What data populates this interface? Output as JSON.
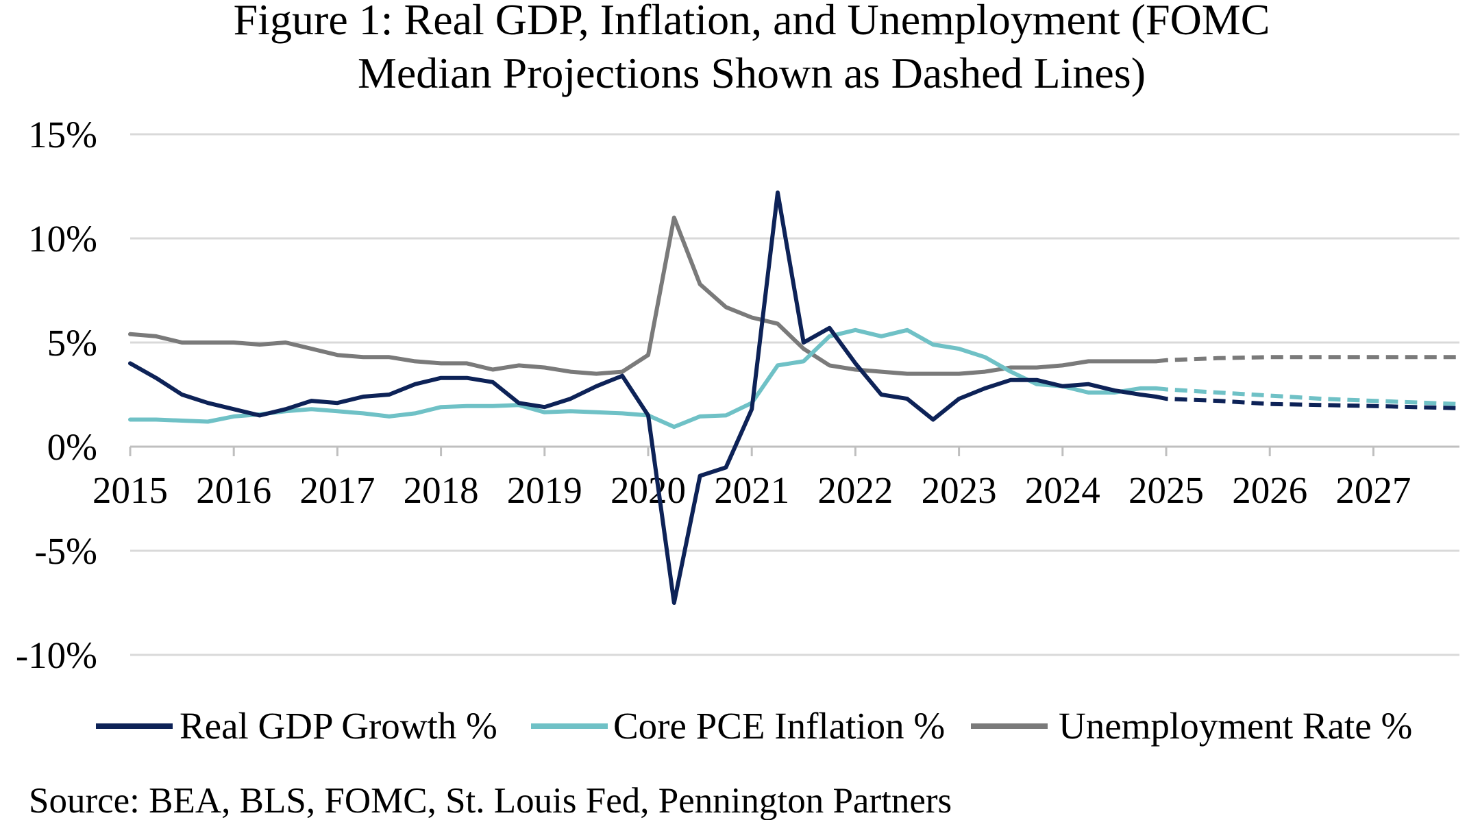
{
  "chart_data": {
    "type": "line",
    "title_lines": [
      "Figure 1: Real GDP, Inflation, and Unemployment (FOMC",
      "Median Projections Shown as Dashed Lines)"
    ],
    "xlabel": "",
    "ylabel": "",
    "ylim": [
      -10,
      15
    ],
    "xlim": [
      2015,
      2027.8
    ],
    "y_ticks": [
      {
        "value": 15,
        "label": "15%"
      },
      {
        "value": 10,
        "label": "10%"
      },
      {
        "value": 5,
        "label": "5%"
      },
      {
        "value": 0,
        "label": "0%"
      },
      {
        "value": -5,
        "label": "-5%"
      },
      {
        "value": -10,
        "label": "-10%"
      }
    ],
    "x_ticks": [
      {
        "value": 2015,
        "label": "2015"
      },
      {
        "value": 2016,
        "label": "2016"
      },
      {
        "value": 2017,
        "label": "2017"
      },
      {
        "value": 2018,
        "label": "2018"
      },
      {
        "value": 2019,
        "label": "2019"
      },
      {
        "value": 2020,
        "label": "2020"
      },
      {
        "value": 2021,
        "label": "2021"
      },
      {
        "value": 2022,
        "label": "2022"
      },
      {
        "value": 2023,
        "label": "2023"
      },
      {
        "value": 2024,
        "label": "2024"
      },
      {
        "value": 2025,
        "label": "2025"
      },
      {
        "value": 2026,
        "label": "2026"
      },
      {
        "value": 2027,
        "label": "2027"
      }
    ],
    "grid": "horizontal",
    "legend_position": "bottom",
    "series": [
      {
        "name": "Real GDP Growth %",
        "color": "#0d2257",
        "x": [
          2015.0,
          2015.25,
          2015.5,
          2015.75,
          2016.0,
          2016.25,
          2016.5,
          2016.75,
          2017.0,
          2017.25,
          2017.5,
          2017.75,
          2018.0,
          2018.25,
          2018.5,
          2018.75,
          2019.0,
          2019.25,
          2019.5,
          2019.75,
          2020.0,
          2020.25,
          2020.5,
          2020.75,
          2021.0,
          2021.25,
          2021.5,
          2021.75,
          2022.0,
          2022.25,
          2022.5,
          2022.75,
          2023.0,
          2023.25,
          2023.5,
          2023.75,
          2024.0,
          2024.25,
          2024.5,
          2024.75,
          2024.9
        ],
        "values": [
          4.0,
          3.3,
          2.5,
          2.1,
          1.8,
          1.5,
          1.8,
          2.2,
          2.1,
          2.4,
          2.5,
          3.0,
          3.3,
          3.3,
          3.1,
          2.1,
          1.9,
          2.3,
          2.9,
          3.4,
          1.5,
          -7.5,
          -1.4,
          -1.0,
          1.8,
          12.2,
          5.0,
          5.7,
          4.0,
          2.5,
          2.3,
          1.3,
          2.3,
          2.8,
          3.2,
          3.2,
          2.9,
          3.0,
          2.7,
          2.5,
          2.4
        ],
        "projection": {
          "x": [
            2024.9,
            2025.0,
            2025.5,
            2026.0,
            2026.5,
            2027.0,
            2027.8
          ],
          "values": [
            2.4,
            2.3,
            2.2,
            2.05,
            2.0,
            1.95,
            1.85
          ]
        }
      },
      {
        "name": "Core PCE Inflation %",
        "color": "#6fc1c6",
        "x": [
          2015.0,
          2015.25,
          2015.5,
          2015.75,
          2016.0,
          2016.25,
          2016.5,
          2016.75,
          2017.0,
          2017.25,
          2017.5,
          2017.75,
          2018.0,
          2018.25,
          2018.5,
          2018.75,
          2019.0,
          2019.25,
          2019.5,
          2019.75,
          2020.0,
          2020.25,
          2020.5,
          2020.75,
          2021.0,
          2021.25,
          2021.5,
          2021.75,
          2022.0,
          2022.25,
          2022.5,
          2022.75,
          2023.0,
          2023.25,
          2023.5,
          2023.75,
          2024.0,
          2024.25,
          2024.5,
          2024.75,
          2024.9
        ],
        "values": [
          1.3,
          1.3,
          1.25,
          1.2,
          1.45,
          1.55,
          1.7,
          1.8,
          1.7,
          1.6,
          1.45,
          1.6,
          1.9,
          1.95,
          1.95,
          2.0,
          1.65,
          1.7,
          1.65,
          1.6,
          1.5,
          0.95,
          1.45,
          1.5,
          2.1,
          3.9,
          4.1,
          5.3,
          5.6,
          5.3,
          5.6,
          4.9,
          4.7,
          4.3,
          3.6,
          3.0,
          2.9,
          2.6,
          2.6,
          2.8,
          2.8
        ],
        "projection": {
          "x": [
            2024.9,
            2025.0,
            2025.5,
            2026.0,
            2026.5,
            2027.0,
            2027.8
          ],
          "values": [
            2.8,
            2.75,
            2.6,
            2.45,
            2.3,
            2.2,
            2.05
          ]
        }
      },
      {
        "name": "Unemployment Rate %",
        "color": "#7a7a7a",
        "x": [
          2015.0,
          2015.25,
          2015.5,
          2015.75,
          2016.0,
          2016.25,
          2016.5,
          2016.75,
          2017.0,
          2017.25,
          2017.5,
          2017.75,
          2018.0,
          2018.25,
          2018.5,
          2018.75,
          2019.0,
          2019.25,
          2019.5,
          2019.75,
          2020.0,
          2020.25,
          2020.5,
          2020.75,
          2021.0,
          2021.25,
          2021.5,
          2021.75,
          2022.0,
          2022.25,
          2022.5,
          2022.75,
          2023.0,
          2023.25,
          2023.5,
          2023.75,
          2024.0,
          2024.25,
          2024.5,
          2024.75,
          2024.9
        ],
        "values": [
          5.4,
          5.3,
          5.0,
          5.0,
          5.0,
          4.9,
          5.0,
          4.7,
          4.4,
          4.3,
          4.3,
          4.1,
          4.0,
          4.0,
          3.7,
          3.9,
          3.8,
          3.6,
          3.5,
          3.6,
          4.4,
          11.0,
          7.8,
          6.7,
          6.2,
          5.9,
          4.7,
          3.9,
          3.7,
          3.6,
          3.5,
          3.5,
          3.5,
          3.6,
          3.8,
          3.8,
          3.9,
          4.1,
          4.1,
          4.1,
          4.1
        ],
        "projection": {
          "x": [
            2024.9,
            2025.0,
            2025.5,
            2026.0,
            2026.5,
            2027.0,
            2027.8
          ],
          "values": [
            4.1,
            4.15,
            4.25,
            4.3,
            4.3,
            4.3,
            4.3
          ]
        }
      }
    ],
    "source": "Source: BEA, BLS, FOMC, St. Louis Fed, Pennington Partners"
  }
}
